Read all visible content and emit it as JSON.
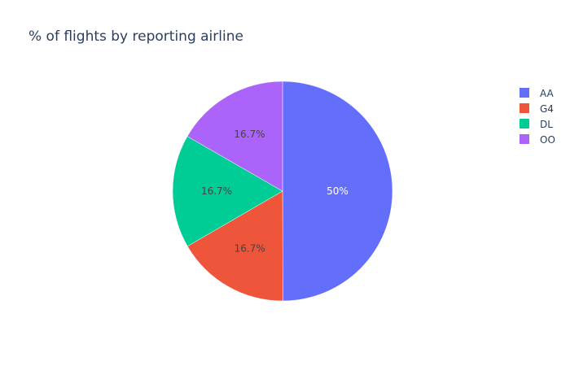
{
  "chart_data": {
    "type": "pie",
    "title": "% of flights by reporting airline",
    "categories": [
      "AA",
      "G4",
      "DL",
      "OO"
    ],
    "values": [
      50,
      16.7,
      16.7,
      16.7
    ],
    "data_labels": [
      "50%",
      "16.7%",
      "16.7%",
      "16.7%"
    ],
    "colors": [
      "#636efa",
      "#ef553b",
      "#00cc96",
      "#ab63fa"
    ],
    "label_colors": [
      "#ffffff",
      "#444444",
      "#444444",
      "#444444"
    ],
    "legend_position": "top-right",
    "direction": "clockwise",
    "start_angle": "top"
  }
}
